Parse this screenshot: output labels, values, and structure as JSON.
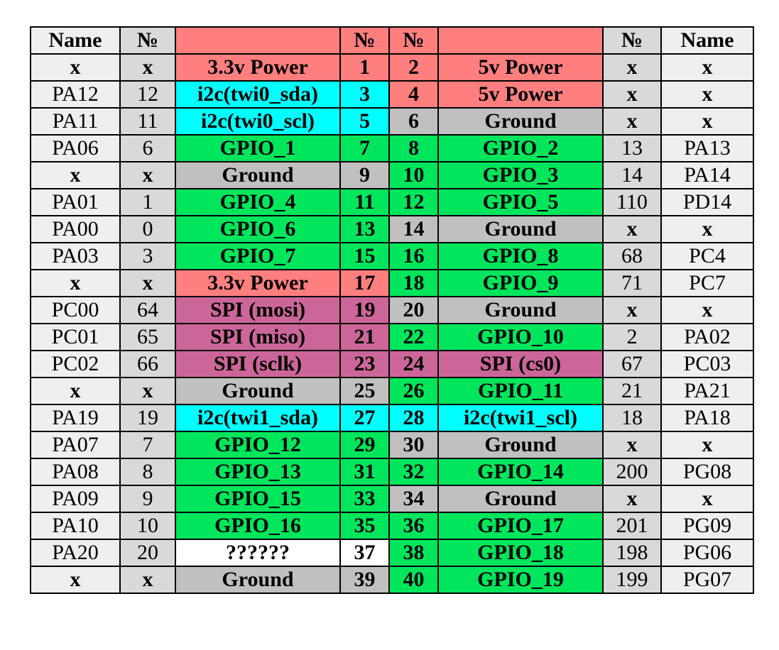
{
  "colors": {
    "power": "#ff7f7f",
    "i2c": "#00ffff",
    "gpio": "#00e65c",
    "ground": "#c0c0c0",
    "spi": "#cc6699",
    "unknown": "#ffffff",
    "name_cell": "#efefef",
    "num_cell": "#d9d9d9"
  },
  "header": {
    "name_left": "Name",
    "num_left": "№",
    "func_left": "",
    "pin_left": "№",
    "pin_right": "№",
    "func_right": "",
    "num_right": "№",
    "name_right": "Name"
  },
  "rows": [
    {
      "name_l": "x",
      "num_l": "x",
      "func_l": "3.3v Power",
      "type_l": "power",
      "pin_l": "1",
      "pin_r": "2",
      "func_r": "5v Power",
      "type_r": "power",
      "num_r": "x",
      "name_r": "x"
    },
    {
      "name_l": "PA12",
      "num_l": "12",
      "func_l": "i2c(twi0_sda)",
      "type_l": "i2c",
      "pin_l": "3",
      "pin_r": "4",
      "func_r": "5v Power",
      "type_r": "power",
      "num_r": "x",
      "name_r": "x"
    },
    {
      "name_l": "PA11",
      "num_l": "11",
      "func_l": "i2c(twi0_scl)",
      "type_l": "i2c",
      "pin_l": "5",
      "pin_r": "6",
      "func_r": "Ground",
      "type_r": "ground",
      "num_r": "x",
      "name_r": "x"
    },
    {
      "name_l": "PA06",
      "num_l": "6",
      "func_l": "GPIO_1",
      "type_l": "gpio",
      "pin_l": "7",
      "pin_r": "8",
      "func_r": "GPIO_2",
      "type_r": "gpio",
      "num_r": "13",
      "name_r": "PA13"
    },
    {
      "name_l": "x",
      "num_l": "x",
      "func_l": "Ground",
      "type_l": "ground",
      "pin_l": "9",
      "pin_r": "10",
      "func_r": "GPIO_3",
      "type_r": "gpio",
      "num_r": "14",
      "name_r": "PA14"
    },
    {
      "name_l": "PA01",
      "num_l": "1",
      "func_l": "GPIO_4",
      "type_l": "gpio",
      "pin_l": "11",
      "pin_r": "12",
      "func_r": "GPIO_5",
      "type_r": "gpio",
      "num_r": "110",
      "name_r": "PD14"
    },
    {
      "name_l": "PA00",
      "num_l": "0",
      "func_l": "GPIO_6",
      "type_l": "gpio",
      "pin_l": "13",
      "pin_r": "14",
      "func_r": "Ground",
      "type_r": "ground",
      "num_r": "x",
      "name_r": "x"
    },
    {
      "name_l": "PA03",
      "num_l": "3",
      "func_l": "GPIO_7",
      "type_l": "gpio",
      "pin_l": "15",
      "pin_r": "16",
      "func_r": "GPIO_8",
      "type_r": "gpio",
      "num_r": "68",
      "name_r": "PC4"
    },
    {
      "name_l": "x",
      "num_l": "x",
      "func_l": "3.3v Power",
      "type_l": "power",
      "pin_l": "17",
      "pin_r": "18",
      "func_r": "GPIO_9",
      "type_r": "gpio",
      "num_r": "71",
      "name_r": "PC7"
    },
    {
      "name_l": "PC00",
      "num_l": "64",
      "func_l": "SPI (mosi)",
      "type_l": "spi",
      "pin_l": "19",
      "pin_r": "20",
      "func_r": "Ground",
      "type_r": "ground",
      "num_r": "x",
      "name_r": "x"
    },
    {
      "name_l": "PC01",
      "num_l": "65",
      "func_l": "SPI (miso)",
      "type_l": "spi",
      "pin_l": "21",
      "pin_r": "22",
      "func_r": "GPIO_10",
      "type_r": "gpio",
      "num_r": "2",
      "name_r": "PA02"
    },
    {
      "name_l": "PC02",
      "num_l": "66",
      "func_l": "SPI (sclk)",
      "type_l": "spi",
      "pin_l": "23",
      "pin_r": "24",
      "func_r": "SPI (cs0)",
      "type_r": "spi",
      "num_r": "67",
      "name_r": "PC03"
    },
    {
      "name_l": "x",
      "num_l": "x",
      "func_l": "Ground",
      "type_l": "ground",
      "pin_l": "25",
      "pin_r": "26",
      "func_r": "GPIO_11",
      "type_r": "gpio",
      "num_r": "21",
      "name_r": "PA21"
    },
    {
      "name_l": "PA19",
      "num_l": "19",
      "func_l": "i2c(twi1_sda)",
      "type_l": "i2c",
      "pin_l": "27",
      "pin_r": "28",
      "func_r": "i2c(twi1_scl)",
      "type_r": "i2c",
      "num_r": "18",
      "name_r": "PA18"
    },
    {
      "name_l": "PA07",
      "num_l": "7",
      "func_l": "GPIO_12",
      "type_l": "gpio",
      "pin_l": "29",
      "pin_r": "30",
      "func_r": "Ground",
      "type_r": "ground",
      "num_r": "x",
      "name_r": "x"
    },
    {
      "name_l": "PA08",
      "num_l": "8",
      "func_l": "GPIO_13",
      "type_l": "gpio",
      "pin_l": "31",
      "pin_r": "32",
      "func_r": "GPIO_14",
      "type_r": "gpio",
      "num_r": "200",
      "name_r": "PG08"
    },
    {
      "name_l": "PA09",
      "num_l": "9",
      "func_l": "GPIO_15",
      "type_l": "gpio",
      "pin_l": "33",
      "pin_r": "34",
      "func_r": "Ground",
      "type_r": "ground",
      "num_r": "x",
      "name_r": "x"
    },
    {
      "name_l": "PA10",
      "num_l": "10",
      "func_l": "GPIO_16",
      "type_l": "gpio",
      "pin_l": "35",
      "pin_r": "36",
      "func_r": "GPIO_17",
      "type_r": "gpio",
      "num_r": "201",
      "name_r": "PG09"
    },
    {
      "name_l": "PA20",
      "num_l": "20",
      "func_l": "??????",
      "type_l": "unknown",
      "pin_l": "37",
      "pin_r": "38",
      "func_r": "GPIO_18",
      "type_r": "gpio",
      "num_r": "198",
      "name_r": "PG06"
    },
    {
      "name_l": "x",
      "num_l": "x",
      "func_l": "Ground",
      "type_l": "ground",
      "pin_l": "39",
      "pin_r": "40",
      "func_r": "GPIO_19",
      "type_r": "gpio",
      "num_r": "199",
      "name_r": "PG07"
    }
  ]
}
